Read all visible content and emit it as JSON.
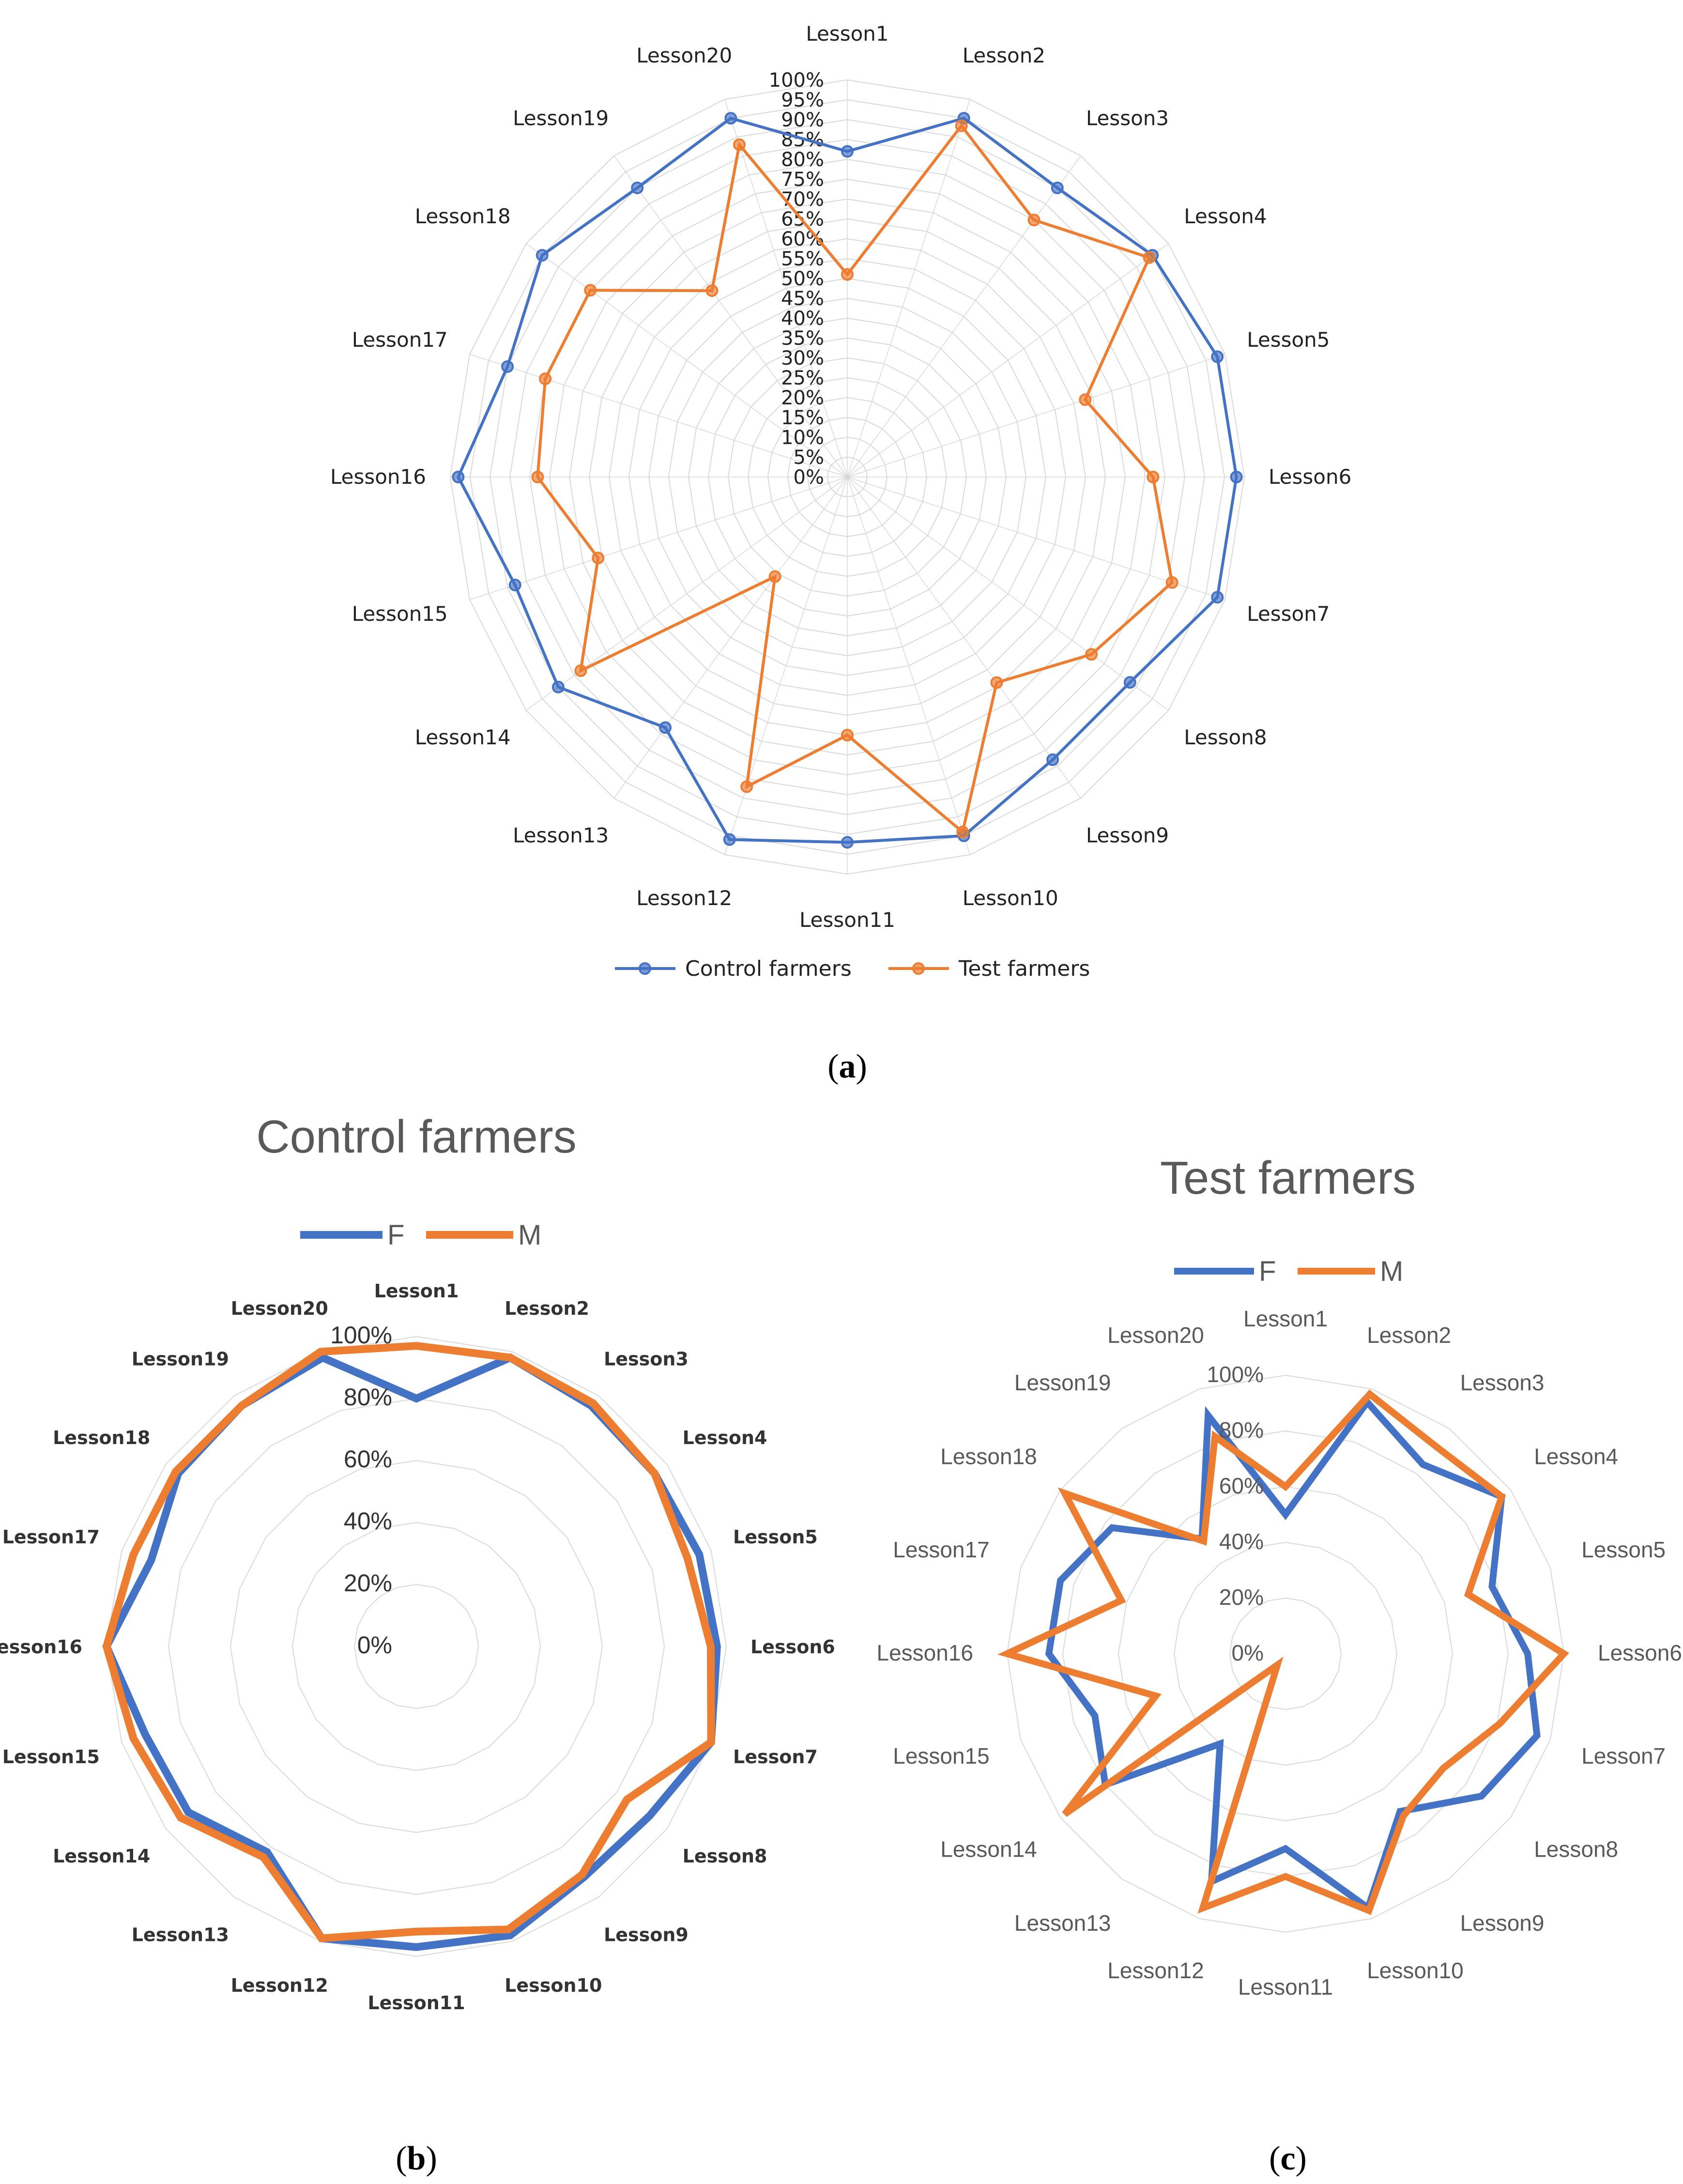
{
  "colors": {
    "blue": "#4472C4",
    "orange": "#ED7D31",
    "grid": "#D9D9D9",
    "text": "#222222",
    "title_gray": "#595959"
  },
  "captions": {
    "a_open": "(",
    "a_letter": "a",
    "a_close": ")",
    "b_open": "(",
    "b_letter": "b",
    "b_close": ")",
    "c_open": "(",
    "c_letter": "c",
    "c_close": ")"
  },
  "chart_data": [
    {
      "id": "a",
      "type": "radar",
      "title": "",
      "categories": [
        "Lesson1",
        "Lesson2",
        "Lesson3",
        "Lesson4",
        "Lesson5",
        "Lesson6",
        "Lesson7",
        "Lesson8",
        "Lesson9",
        "Lesson10",
        "Lesson11",
        "Lesson12",
        "Lesson13",
        "Lesson14",
        "Lesson15",
        "Lesson16",
        "Lesson17",
        "Lesson18",
        "Lesson19",
        "Lesson20"
      ],
      "ticks": [
        "0%",
        "5%",
        "10%",
        "15%",
        "20%",
        "25%",
        "30%",
        "35%",
        "40%",
        "45%",
        "50%",
        "55%",
        "60%",
        "65%",
        "70%",
        "75%",
        "80%",
        "85%",
        "90%",
        "95%",
        "100%"
      ],
      "ylim": [
        0,
        100
      ],
      "legend_position": "bottom",
      "series": [
        {
          "name": "Control farmers",
          "color": "#4472C4",
          "values": [
            82,
            95,
            90,
            95,
            98,
            98,
            98,
            88,
            88,
            95,
            92,
            96,
            78,
            90,
            88,
            98,
            90,
            95,
            90,
            95
          ]
        },
        {
          "name": "Test farmers",
          "color": "#ED7D31",
          "values": [
            51,
            93,
            80,
            94,
            63,
            77,
            86,
            76,
            64,
            94,
            65,
            82,
            31,
            83,
            66,
            78,
            80,
            80,
            58,
            88
          ]
        }
      ]
    },
    {
      "id": "b",
      "type": "radar",
      "title": "Control farmers",
      "categories": [
        "Lesson1",
        "Lesson2",
        "Lesson3",
        "Lesson4",
        "Lesson5",
        "Lesson6",
        "Lesson7",
        "Lesson8",
        "Lesson9",
        "Lesson10",
        "Lesson11",
        "Lesson12",
        "Lesson13",
        "Lesson14",
        "Lesson15",
        "Lesson16",
        "Lesson17",
        "Lesson18",
        "Lesson19",
        "Lesson20"
      ],
      "ticks": [
        "0%",
        "20%",
        "40%",
        "60%",
        "80%",
        "100%"
      ],
      "ylim": [
        0,
        100
      ],
      "legend_position": "top",
      "series": [
        {
          "name": "F",
          "color": "#4472C4",
          "values": [
            80,
            98,
            96,
            95,
            96,
            97,
            100,
            93,
            92,
            98,
            97,
            99,
            82,
            91,
            92,
            100,
            90,
            95,
            96,
            98
          ]
        },
        {
          "name": "M",
          "color": "#ED7D31",
          "values": [
            97,
            98,
            97,
            95,
            92,
            95,
            100,
            84,
            91,
            96,
            92,
            99,
            84,
            94,
            96,
            100,
            96,
            96,
            96,
            100
          ]
        }
      ]
    },
    {
      "id": "c",
      "type": "radar",
      "title": "Test farmers",
      "categories": [
        "Lesson1",
        "Lesson2",
        "Lesson3",
        "Lesson4",
        "Lesson5",
        "Lesson6",
        "Lesson7",
        "Lesson8",
        "Lesson9",
        "Lesson10",
        "Lesson11",
        "Lesson12",
        "Lesson13",
        "Lesson14",
        "Lesson15",
        "Lesson16",
        "Lesson17",
        "Lesson18",
        "Lesson19",
        "Lesson20"
      ],
      "ticks": [
        "0%",
        "20%",
        "40%",
        "60%",
        "80%",
        "100%"
      ],
      "ylim": [
        0,
        100
      ],
      "legend_position": "top",
      "series": [
        {
          "name": "F",
          "color": "#4472C4",
          "values": [
            50,
            95,
            84,
            96,
            78,
            87,
            95,
            87,
            70,
            96,
            70,
            86,
            40,
            80,
            72,
            85,
            85,
            77,
            51,
            90
          ]
        },
        {
          "name": "M",
          "color": "#ED7D31",
          "values": [
            60,
            98,
            92,
            96,
            69,
            100,
            81,
            70,
            72,
            97,
            80,
            96,
            5,
            98,
            49,
            100,
            62,
            98,
            50,
            82
          ]
        }
      ]
    }
  ]
}
